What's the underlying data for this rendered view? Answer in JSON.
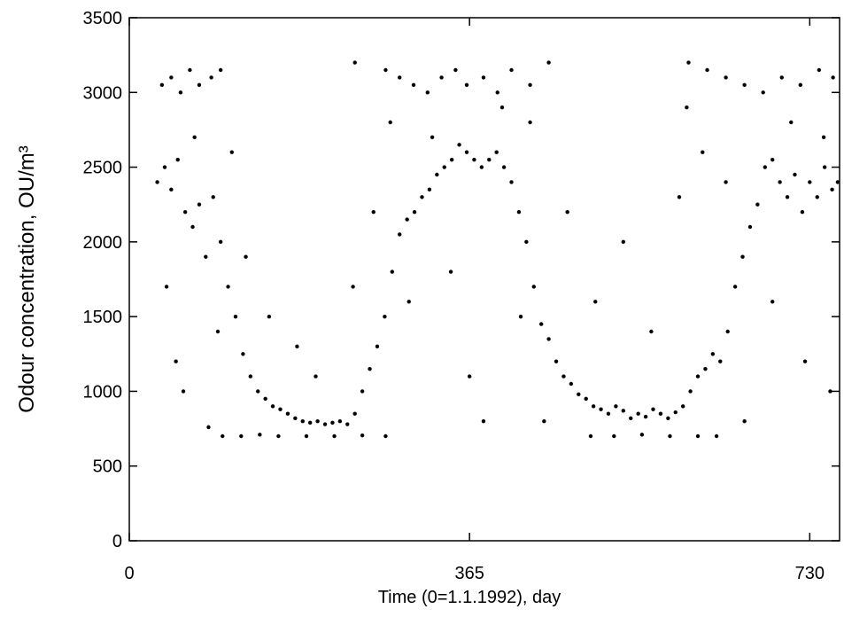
{
  "chart_data": {
    "type": "scatter",
    "x_label": "Time (0=1.1.1992), day",
    "y_label": "Odour concentration,  OU/m³",
    "xlim": [
      0,
      762
    ],
    "xticks": [
      0,
      365,
      730
    ],
    "ylim": [
      0,
      3500
    ],
    "yticks": [
      0,
      500,
      1000,
      1500,
      2000,
      2500,
      3000,
      3500
    ],
    "color": "#000000",
    "x": [
      30,
      38,
      45,
      52,
      60,
      68,
      75,
      82,
      90,
      98,
      106,
      114,
      122,
      130,
      138,
      146,
      154,
      162,
      170,
      178,
      186,
      194,
      202,
      210,
      218,
      226,
      234,
      242,
      250,
      258,
      266,
      274,
      282,
      290,
      298,
      306,
      314,
      322,
      330,
      338,
      346,
      354,
      362,
      370,
      378,
      386,
      394,
      402,
      410,
      418,
      426,
      434,
      442,
      450,
      458,
      466,
      474,
      482,
      490,
      498,
      506,
      514,
      522,
      530,
      538,
      546,
      554,
      562,
      570,
      578,
      586,
      594,
      602,
      610,
      618,
      626,
      634,
      642,
      650,
      658,
      666,
      674,
      682,
      690,
      698,
      706,
      714,
      722,
      730,
      738,
      746,
      754,
      760,
      35,
      45,
      55,
      65,
      75,
      88,
      98,
      275,
      290,
      305,
      320,
      335,
      350,
      362,
      380,
      395,
      410,
      430,
      450,
      600,
      620,
      640,
      660,
      680,
      700,
      720,
      740,
      755,
      100,
      120,
      140,
      160,
      190,
      220,
      250,
      275,
      495,
      520,
      550,
      580,
      610,
      630,
      40,
      50,
      58,
      70,
      85,
      95,
      110,
      125,
      150,
      180,
      200,
      240,
      242,
      262,
      280,
      300,
      325,
      345,
      365,
      380,
      400,
      420,
      430,
      445,
      470,
      500,
      530,
      560,
      590,
      598,
      615,
      640,
      660,
      690,
      710,
      725,
      745,
      752
    ],
    "values": [
      2400,
      2500,
      2350,
      2550,
      2200,
      2100,
      2250,
      1900,
      2300,
      2000,
      1700,
      1500,
      1250,
      1100,
      1000,
      950,
      900,
      880,
      850,
      820,
      800,
      790,
      800,
      780,
      790,
      800,
      780,
      850,
      1000,
      1150,
      1300,
      1500,
      1800,
      2050,
      2150,
      2200,
      2300,
      2350,
      2450,
      2500,
      2550,
      2650,
      2600,
      2550,
      2500,
      2550,
      2600,
      2500,
      2400,
      2200,
      2000,
      1700,
      1450,
      1350,
      1200,
      1100,
      1050,
      980,
      950,
      900,
      880,
      850,
      900,
      870,
      820,
      850,
      830,
      880,
      850,
      820,
      860,
      900,
      1000,
      1100,
      1150,
      1250,
      1200,
      1400,
      1700,
      1900,
      2100,
      2250,
      2500,
      2550,
      2400,
      2300,
      2450,
      2200,
      2400,
      2300,
      2500,
      2350,
      2400,
      3050,
      3100,
      3000,
      3150,
      3050,
      3100,
      3150,
      3150,
      3100,
      3050,
      3000,
      3100,
      3150,
      3050,
      3100,
      3000,
      3150,
      3050,
      3200,
      3200,
      3150,
      3100,
      3050,
      3000,
      3100,
      3050,
      3150,
      3100,
      700,
      700,
      710,
      700,
      700,
      700,
      705,
      700,
      700,
      700,
      710,
      700,
      700,
      700,
      1700,
      1200,
      1000,
      2700,
      760,
      1400,
      2600,
      1900,
      1500,
      1300,
      1100,
      1700,
      3200,
      2200,
      2800,
      1600,
      2700,
      1800,
      1100,
      800,
      2900,
      1500,
      2800,
      800,
      2200,
      1600,
      2000,
      1400,
      2300,
      2900,
      2600,
      2400,
      800,
      1600,
      2800,
      1200,
      2700,
      1000
    ]
  }
}
